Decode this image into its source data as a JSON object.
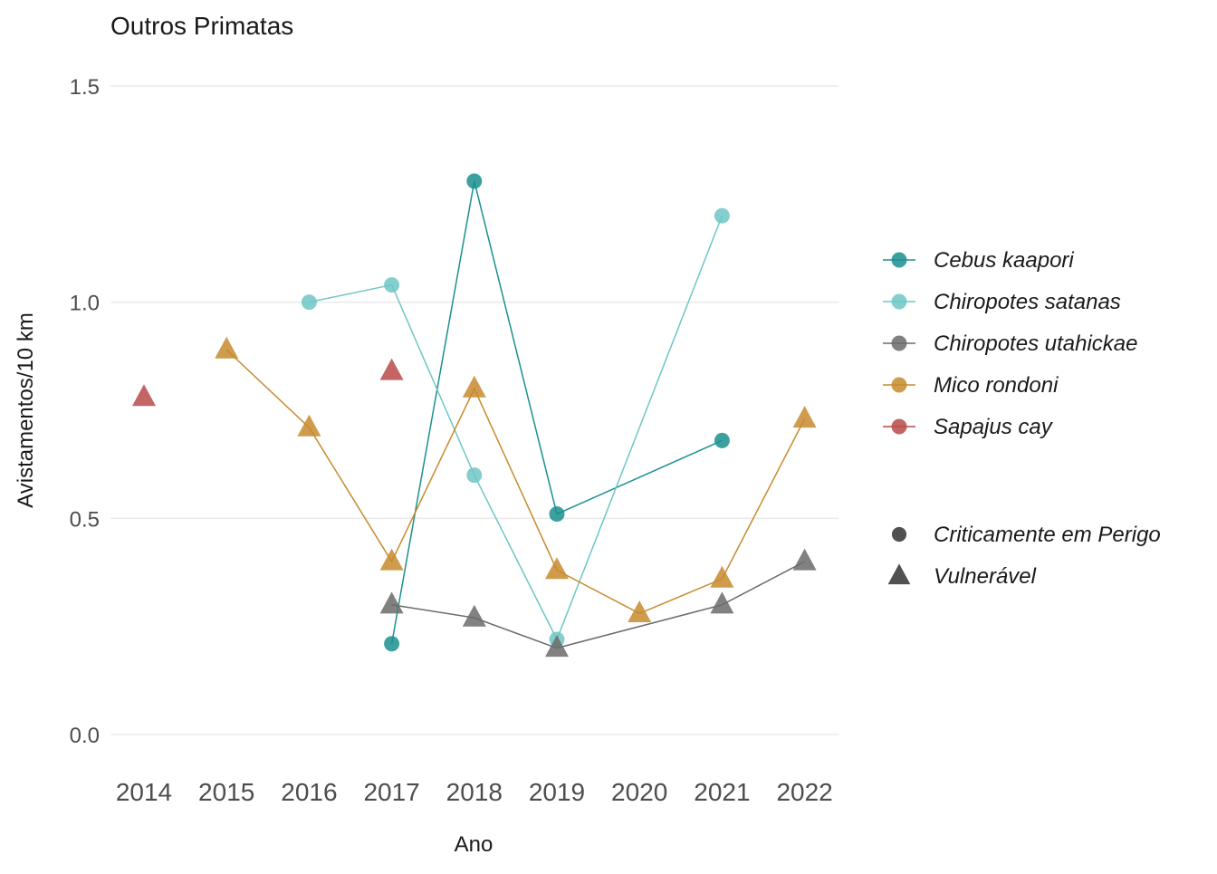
{
  "chart_data": {
    "type": "line",
    "title": "Outros Primatas",
    "xlabel": "Ano",
    "ylabel": "Avistamentos/10 km",
    "ylim": [
      -0.08,
      1.56
    ],
    "x_ticks": [
      "2014",
      "2015",
      "2016",
      "2017",
      "2018",
      "2019",
      "2020",
      "2021",
      "2022"
    ],
    "y_ticks": [
      "0.0",
      "0.5",
      "1.0",
      "1.5"
    ],
    "grid": true,
    "legend_position": "right",
    "series": [
      {
        "name": "Cebus kaapori",
        "color": "#1b8f8f",
        "shape": "circle",
        "points": [
          [
            2017,
            0.21
          ],
          [
            2018,
            1.28
          ],
          [
            2019,
            0.51
          ],
          [
            2021,
            0.68
          ]
        ],
        "segments": [
          [
            [
              2017,
              0.21
            ],
            [
              2018,
              1.28
            ],
            [
              2019,
              0.51
            ],
            [
              2021,
              0.68
            ]
          ]
        ]
      },
      {
        "name": "Chiropotes satanas",
        "color": "#6ec6c6",
        "shape": "circle",
        "points": [
          [
            2016,
            1.0
          ],
          [
            2017,
            1.04
          ],
          [
            2018,
            0.6
          ],
          [
            2019,
            0.22
          ],
          [
            2021,
            1.2
          ]
        ],
        "segments": [
          [
            [
              2016,
              1.0
            ],
            [
              2017,
              1.04
            ],
            [
              2018,
              0.6
            ],
            [
              2019,
              0.22
            ],
            [
              2021,
              1.2
            ]
          ]
        ]
      },
      {
        "name": "Chiropotes utahickae",
        "color": "#6b6b6b",
        "shape": "triangle",
        "points": [
          [
            2017,
            0.3
          ],
          [
            2018,
            0.27
          ],
          [
            2019,
            0.2
          ],
          [
            2021,
            0.3
          ],
          [
            2022,
            0.4
          ]
        ],
        "segments": [
          [
            [
              2017,
              0.3
            ],
            [
              2018,
              0.27
            ],
            [
              2019,
              0.2
            ],
            [
              2021,
              0.3
            ],
            [
              2022,
              0.4
            ]
          ]
        ]
      },
      {
        "name": "Mico rondoni",
        "color": "#c78a2e",
        "shape": "triangle",
        "points": [
          [
            2015,
            0.89
          ],
          [
            2016,
            0.71
          ],
          [
            2017,
            0.4
          ],
          [
            2018,
            0.8
          ],
          [
            2019,
            0.38
          ],
          [
            2020,
            0.28
          ],
          [
            2021,
            0.36
          ],
          [
            2022,
            0.73
          ]
        ],
        "segments": [
          [
            [
              2015,
              0.89
            ],
            [
              2016,
              0.71
            ],
            [
              2017,
              0.4
            ],
            [
              2018,
              0.8
            ],
            [
              2019,
              0.38
            ],
            [
              2020,
              0.28
            ],
            [
              2021,
              0.36
            ],
            [
              2022,
              0.73
            ]
          ]
        ]
      },
      {
        "name": "Sapajus cay",
        "color": "#b84a4a",
        "shape": "triangle",
        "points": [
          [
            2014,
            0.78
          ],
          [
            2017,
            0.84
          ]
        ],
        "segments": []
      }
    ],
    "shape_legend": [
      {
        "label": "Criticamente em Perigo",
        "shape": "circle"
      },
      {
        "label": "Vulnerável",
        "shape": "triangle"
      }
    ]
  }
}
